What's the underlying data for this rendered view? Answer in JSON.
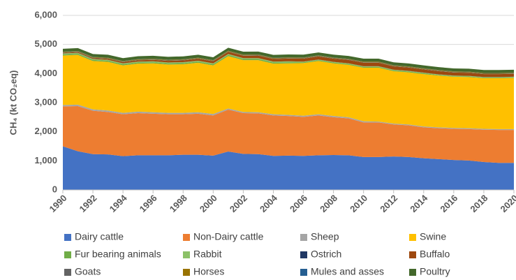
{
  "chart_data": {
    "type": "stacked_area",
    "y_label": "CH₄ (kt CO₂eq)",
    "x": [
      1990,
      1991,
      1992,
      1993,
      1994,
      1995,
      1996,
      1997,
      1998,
      1999,
      2000,
      2001,
      2002,
      2003,
      2004,
      2005,
      2006,
      2007,
      2008,
      2009,
      2010,
      2011,
      2012,
      2013,
      2014,
      2015,
      2016,
      2017,
      2018,
      2019,
      2020
    ],
    "xlim": [
      1990,
      2020
    ],
    "xticks": [
      1990,
      1992,
      1994,
      1996,
      1998,
      2000,
      2002,
      2004,
      2006,
      2008,
      2010,
      2012,
      2014,
      2016,
      2018,
      2020
    ],
    "ylim": [
      0,
      6000
    ],
    "yticks": [
      0,
      {
        "value": 1000,
        "label": "1,000"
      },
      {
        "value": 2000,
        "label": "2,000"
      },
      {
        "value": 3000,
        "label": "3,000"
      },
      {
        "value": 4000,
        "label": "4,000"
      },
      {
        "value": 5000,
        "label": "5,000"
      },
      {
        "value": 6000,
        "label": "6,000"
      }
    ],
    "grid": true,
    "legend": "bottom",
    "series": [
      {
        "name": "Dairy cattle",
        "color": "#4472c4",
        "values": [
          1500,
          1330,
          1230,
          1220,
          1160,
          1190,
          1190,
          1190,
          1210,
          1210,
          1180,
          1320,
          1240,
          1230,
          1170,
          1180,
          1170,
          1190,
          1200,
          1190,
          1130,
          1130,
          1150,
          1130,
          1090,
          1060,
          1030,
          1010,
          960,
          930,
          930
        ]
      },
      {
        "name": "Non-Dairy cattle",
        "color": "#ed7d31",
        "values": [
          1370,
          1550,
          1490,
          1460,
          1440,
          1450,
          1430,
          1410,
          1390,
          1410,
          1380,
          1440,
          1400,
          1400,
          1390,
          1360,
          1340,
          1370,
          1300,
          1270,
          1190,
          1190,
          1100,
          1090,
          1060,
          1060,
          1070,
          1080,
          1110,
          1130,
          1130
        ]
      },
      {
        "name": "Sheep",
        "color": "#a5a5a5",
        "values": [
          50,
          50,
          50,
          50,
          50,
          50,
          50,
          50,
          50,
          50,
          50,
          40,
          40,
          40,
          40,
          40,
          40,
          40,
          40,
          40,
          40,
          30,
          30,
          30,
          30,
          30,
          30,
          30,
          30,
          30,
          30
        ]
      },
      {
        "name": "Swine",
        "color": "#ffc000",
        "values": [
          1700,
          1710,
          1660,
          1670,
          1630,
          1650,
          1680,
          1660,
          1670,
          1700,
          1670,
          1800,
          1780,
          1790,
          1740,
          1770,
          1810,
          1830,
          1810,
          1800,
          1840,
          1850,
          1800,
          1790,
          1800,
          1780,
          1760,
          1760,
          1740,
          1750,
          1760
        ]
      },
      {
        "name": "Fur bearing animals",
        "color": "#70ad47",
        "values": [
          40,
          40,
          40,
          40,
          40,
          40,
          40,
          40,
          40,
          40,
          40,
          40,
          40,
          40,
          40,
          40,
          30,
          30,
          30,
          30,
          30,
          30,
          30,
          30,
          30,
          20,
          20,
          20,
          20,
          20,
          20
        ]
      },
      {
        "name": "Rabbit",
        "color": "#8cc168",
        "values": [
          30,
          30,
          30,
          30,
          30,
          30,
          30,
          30,
          30,
          30,
          30,
          30,
          30,
          30,
          30,
          30,
          20,
          20,
          20,
          20,
          20,
          20,
          20,
          20,
          20,
          20,
          20,
          20,
          20,
          20,
          20
        ]
      },
      {
        "name": "Ostrich",
        "color": "#203864",
        "values": [
          1,
          1,
          1,
          1,
          1,
          1,
          1,
          1,
          1,
          1,
          1,
          1,
          1,
          1,
          1,
          1,
          1,
          1,
          1,
          1,
          1,
          1,
          1,
          1,
          1,
          1,
          1,
          1,
          1,
          1,
          1
        ]
      },
      {
        "name": "Buffalo",
        "color": "#9e480e",
        "values": [
          20,
          25,
          30,
          35,
          40,
          45,
          50,
          55,
          60,
          65,
          70,
          75,
          80,
          85,
          90,
          95,
          100,
          105,
          110,
          115,
          120,
          120,
          115,
          115,
          110,
          110,
          105,
          105,
          100,
          100,
          100
        ]
      },
      {
        "name": "Goats",
        "color": "#636363",
        "values": [
          15,
          15,
          15,
          15,
          15,
          15,
          15,
          15,
          15,
          15,
          15,
          15,
          15,
          15,
          15,
          15,
          15,
          15,
          15,
          15,
          15,
          15,
          15,
          15,
          15,
          15,
          15,
          15,
          15,
          15,
          15
        ]
      },
      {
        "name": "Horses",
        "color": "#997300",
        "values": [
          20,
          20,
          20,
          20,
          20,
          20,
          20,
          20,
          20,
          20,
          20,
          20,
          20,
          20,
          20,
          20,
          20,
          20,
          20,
          20,
          20,
          20,
          20,
          20,
          20,
          20,
          20,
          20,
          20,
          20,
          20
        ]
      },
      {
        "name": "Mules and asses",
        "color": "#255e91",
        "values": [
          5,
          5,
          5,
          5,
          5,
          5,
          5,
          5,
          5,
          5,
          5,
          5,
          5,
          5,
          5,
          5,
          5,
          5,
          5,
          5,
          5,
          5,
          5,
          5,
          5,
          5,
          5,
          5,
          5,
          5,
          5
        ]
      },
      {
        "name": "Poultry",
        "color": "#43682b",
        "values": [
          100,
          100,
          100,
          100,
          100,
          100,
          100,
          100,
          100,
          100,
          100,
          100,
          100,
          100,
          100,
          100,
          100,
          100,
          100,
          100,
          100,
          100,
          100,
          100,
          100,
          100,
          100,
          100,
          100,
          100,
          100
        ]
      }
    ]
  }
}
